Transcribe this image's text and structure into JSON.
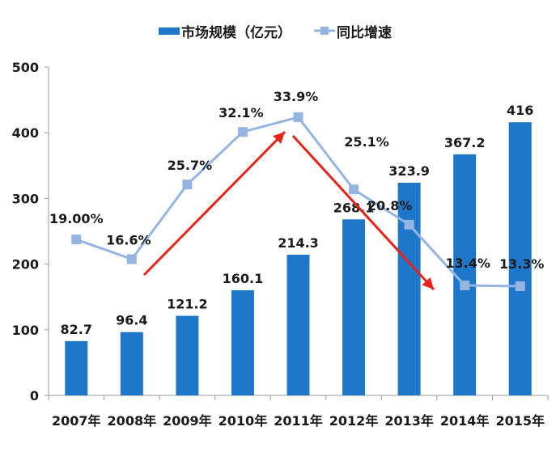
{
  "chart_data": {
    "type": "bar+line",
    "categories": [
      "2007年",
      "2008年",
      "2009年",
      "2010年",
      "2011年",
      "2012年",
      "2013年",
      "2014年",
      "2015年"
    ],
    "series": [
      {
        "name": "市场规模（亿元）",
        "type": "bar",
        "axis": "left",
        "color": "#1f77c9",
        "values": [
          82.7,
          96.4,
          121.2,
          160.1,
          214.3,
          268.1,
          323.9,
          367.2,
          416
        ],
        "labels": [
          "82.7",
          "96.4",
          "121.2",
          "160.1",
          "214.3",
          "268.1",
          "323.9",
          "367.2",
          "416"
        ]
      },
      {
        "name": "同比增速",
        "type": "line",
        "axis": "secondary-hidden",
        "color": "#94b4e2",
        "values": [
          19.0,
          16.6,
          25.7,
          32.1,
          33.9,
          25.1,
          20.8,
          13.4,
          13.3
        ],
        "labels": [
          "19.00%",
          "16.6%",
          "25.7%",
          "32.1%",
          "33.9%",
          "25.1%",
          "20.8%",
          "13.4%",
          "13.3%"
        ]
      }
    ],
    "ylim": [
      0,
      500
    ],
    "yticks": [
      "0",
      "100",
      "200",
      "300",
      "400",
      "500"
    ],
    "legend": "top",
    "grid": false,
    "annotations": [
      {
        "type": "arrow",
        "color": "#e8231a",
        "from": "2008年",
        "to": "2011年",
        "direction": "up"
      },
      {
        "type": "arrow",
        "color": "#e8231a",
        "from": "2011年",
        "to": "2014年",
        "direction": "down"
      }
    ]
  }
}
